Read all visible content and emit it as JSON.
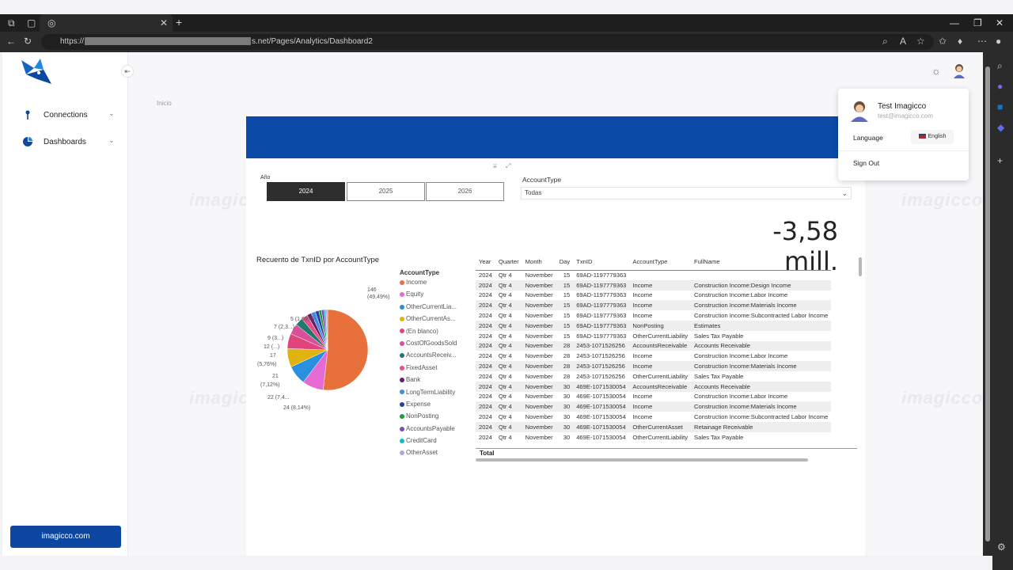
{
  "browser": {
    "url_prefix": "https://",
    "url_suffix": "s.net/Pages/Analytics/Dashboard2"
  },
  "sidebar": {
    "items": [
      {
        "label": "Connections",
        "icon": "connections-icon"
      },
      {
        "label": "Dashboards",
        "icon": "dashboards-icon"
      }
    ],
    "site_button": "imagicco.com"
  },
  "watermark_text": "imagicco",
  "breadcrumb": "Inicio",
  "filters": {
    "year_label": "Año",
    "years": [
      "2024",
      "2025",
      "2026"
    ],
    "selected_year": "2024",
    "account_type_label": "AccountType",
    "account_type_value": "Todas"
  },
  "kpi_value": "-3,58 mill.",
  "chart_data": {
    "type": "pie",
    "title": "Recuento de TxnID por AccountType",
    "legend_title": "AccountType",
    "legend_position": "right",
    "slices": [
      {
        "label": "Income",
        "value": 146,
        "percent": "49,49%",
        "color": "#e8703a"
      },
      {
        "label": "Equity",
        "value": 24,
        "percent": "8,14%",
        "color": "#e66ad3"
      },
      {
        "label": "OtherCurrentLia...",
        "value": 22,
        "percent": "7,4...",
        "color": "#2b8fe0"
      },
      {
        "label": "OtherCurrentAs...",
        "value": 21,
        "percent": "7,12%",
        "color": "#e0b30e"
      },
      {
        "label": "(En blanco)",
        "value": 17,
        "percent": "5,76%",
        "color": "#e0447a"
      },
      {
        "label": "CostOfGoodsSold",
        "value": 12,
        "percent": "...",
        "color": "#d94f9a"
      },
      {
        "label": "AccountsReceiv...",
        "value": 9,
        "percent": "3...",
        "color": "#1f7a6e"
      },
      {
        "label": "FixedAsset",
        "value": 7,
        "percent": "2,3...",
        "color": "#e94e8a"
      },
      {
        "label": "Bank",
        "value": 5,
        "percent": "1,69%",
        "color": "#6b1b6e"
      },
      {
        "label": "LongTermLiability",
        "value": 5,
        "percent": "",
        "color": "#3d8fe0"
      },
      {
        "label": "Expense",
        "value": 4,
        "percent": "",
        "color": "#2a3ea0"
      },
      {
        "label": "NonPosting",
        "value": 3,
        "percent": "",
        "color": "#1d9a3e"
      },
      {
        "label": "AccountsPayable",
        "value": 3,
        "percent": "",
        "color": "#7d4bb8"
      },
      {
        "label": "CreditCard",
        "value": 2,
        "percent": "",
        "color": "#19b8c9"
      },
      {
        "label": "OtherAsset",
        "value": 2,
        "percent": "",
        "color": "#b8a0e8"
      }
    ],
    "data_labels": [
      {
        "text": "146",
        "sub": "(49,49%)"
      },
      {
        "text": "24 (8,14%)"
      },
      {
        "text": "22 (7,4...",
        "sub": ""
      },
      {
        "text": "21",
        "sub": "(7,12%)"
      },
      {
        "text": "17",
        "sub": "(5,76%)"
      },
      {
        "text": "12 (...)"
      },
      {
        "text": "9 (3...)"
      },
      {
        "text": "7 (2,3...)"
      },
      {
        "text": "5 (1,69%)"
      }
    ]
  },
  "table": {
    "columns": [
      "Year",
      "Quarter",
      "Month",
      "Day",
      "TxnID",
      "AccountType",
      "FullName"
    ],
    "rows": [
      [
        "2024",
        "Qtr 4",
        "November",
        "15",
        "69AD-1197779363",
        "",
        ""
      ],
      [
        "2024",
        "Qtr 4",
        "November",
        "15",
        "69AD-1197779363",
        "Income",
        "Construction Income:Design Income"
      ],
      [
        "2024",
        "Qtr 4",
        "November",
        "15",
        "69AD-1197779363",
        "Income",
        "Construction Income:Labor Income"
      ],
      [
        "2024",
        "Qtr 4",
        "November",
        "15",
        "69AD-1197779363",
        "Income",
        "Construction Income:Materials Income"
      ],
      [
        "2024",
        "Qtr 4",
        "November",
        "15",
        "69AD-1197779363",
        "Income",
        "Construction Income:Subcontracted Labor Income"
      ],
      [
        "2024",
        "Qtr 4",
        "November",
        "15",
        "69AD-1197779363",
        "NonPosting",
        "Estimates"
      ],
      [
        "2024",
        "Qtr 4",
        "November",
        "15",
        "69AD-1197779363",
        "OtherCurrentLiability",
        "Sales Tax Payable"
      ],
      [
        "2024",
        "Qtr 4",
        "November",
        "28",
        "2453-1071526256",
        "AccountsReceivable",
        "Accounts Receivable"
      ],
      [
        "2024",
        "Qtr 4",
        "November",
        "28",
        "2453-1071526256",
        "Income",
        "Construction Income:Labor Income"
      ],
      [
        "2024",
        "Qtr 4",
        "November",
        "28",
        "2453-1071526256",
        "Income",
        "Construction Income:Materials Income"
      ],
      [
        "2024",
        "Qtr 4",
        "November",
        "28",
        "2453-1071526256",
        "OtherCurrentLiability",
        "Sales Tax Payable"
      ],
      [
        "2024",
        "Qtr 4",
        "November",
        "30",
        "469E-1071530054",
        "AccountsReceivable",
        "Accounts Receivable"
      ],
      [
        "2024",
        "Qtr 4",
        "November",
        "30",
        "469E-1071530054",
        "Income",
        "Construction Income:Labor Income"
      ],
      [
        "2024",
        "Qtr 4",
        "November",
        "30",
        "469E-1071530054",
        "Income",
        "Construction Income:Materials Income"
      ],
      [
        "2024",
        "Qtr 4",
        "November",
        "30",
        "469E-1071530054",
        "Income",
        "Construction Income:Subcontracted Labor Income"
      ],
      [
        "2024",
        "Qtr 4",
        "November",
        "30",
        "469E-1071530054",
        "OtherCurrentAsset",
        "Retainage Receivable"
      ],
      [
        "2024",
        "Qtr 4",
        "November",
        "30",
        "469E-1071530054",
        "OtherCurrentLiability",
        "Sales Tax Payable"
      ]
    ],
    "total_label": "Total"
  },
  "profile": {
    "name": "Test Imagicco",
    "email": "test@imagicco.com",
    "language_label": "Language",
    "language_value": "English",
    "signout_label": "Sign Out"
  },
  "colors": {
    "banner": "#0b4aa6",
    "site_button": "#0d47a1",
    "accent": "#4a90d9"
  }
}
